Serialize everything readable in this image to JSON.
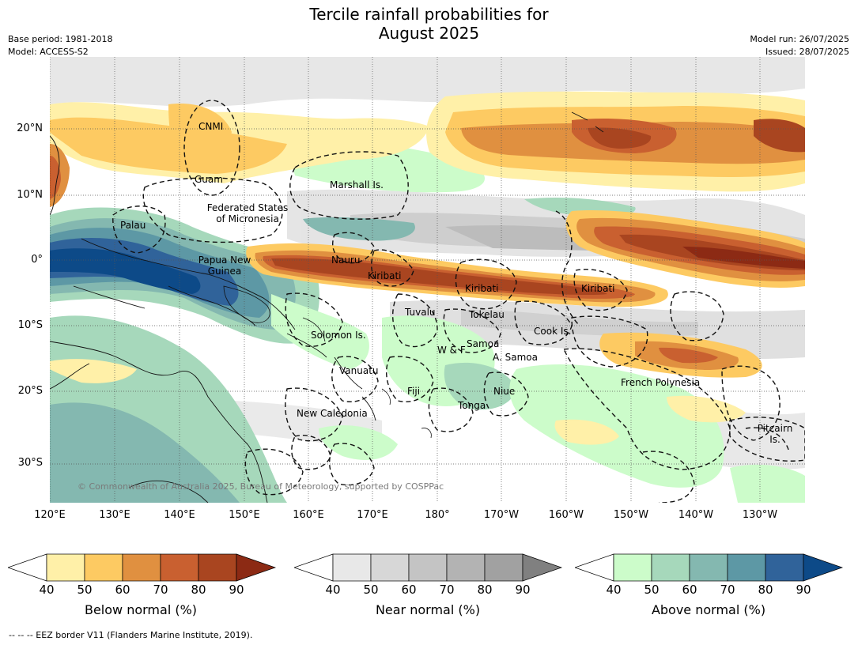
{
  "title_line1": "Tercile rainfall probabilities for",
  "title_line2": "August 2025",
  "meta": {
    "base_period": "Base period: 1981-2018",
    "model": "Model: ACCESS-S2",
    "model_run": "Model run: 26/07/2025",
    "issued": "Issued: 28/07/2025"
  },
  "lat_ticks": [
    "20°N",
    "10°N",
    "0°",
    "10°S",
    "20°S",
    "30°S"
  ],
  "lon_ticks": [
    "120°E",
    "130°E",
    "140°E",
    "150°E",
    "160°E",
    "170°E",
    "180°",
    "170°W",
    "160°W",
    "150°W",
    "140°W",
    "130°W"
  ],
  "places": {
    "cnmi": "CNMI",
    "guam": "Guam",
    "marshall": "Marshall Is.",
    "fsm1": "Federated States",
    "fsm2": "of Micronesia",
    "palau": "Palau",
    "png1": "Papua New",
    "png2": "Guinea",
    "nauru": "Nauru",
    "kiribati_w": "Kiribati",
    "kiribati_c": "Kiribati",
    "kiribati_e": "Kiribati",
    "tuvalu": "Tuvalu",
    "tokelau": "Tokelau",
    "solomon": "Solomon Is.",
    "cook": "Cook Is.",
    "wf": "W & F",
    "samoa": "Samoa",
    "asamoa": "A. Samoa",
    "vanuatu": "Vanuatu",
    "fiji": "Fiji",
    "niue": "Niue",
    "tonga": "Tonga",
    "french_polynesia": "French Polynesia",
    "newcal": "New Caledonia",
    "pitcairn1": "Pitcairn",
    "pitcairn2": "Is."
  },
  "copyright": "© Commonwealth of Australia 2025, Bureau of Meteorology, supported by COSPPac",
  "colorbars": [
    {
      "title": "Below normal (%)",
      "colors": [
        "#ffffff",
        "#fff0a8",
        "#fdca62",
        "#e09040",
        "#c96030",
        "#a94520",
        "#8c2a14"
      ],
      "ticks": [
        "40",
        "50",
        "60",
        "70",
        "80",
        "90"
      ]
    },
    {
      "title": "Near normal (%)",
      "colors": [
        "#ffffff",
        "#e8e8e8",
        "#d7d7d7",
        "#c4c4c4",
        "#b3b3b3",
        "#a1a1a1",
        "#808080"
      ],
      "ticks": [
        "40",
        "50",
        "60",
        "70",
        "80",
        "90"
      ]
    },
    {
      "title": "Above normal (%)",
      "colors": [
        "#ffffff",
        "#ccfcca",
        "#a6d8bb",
        "#84b8b0",
        "#5d98a5",
        "#30639a",
        "#0d4a88"
      ],
      "ticks": [
        "40",
        "50",
        "60",
        "70",
        "80",
        "90"
      ]
    }
  ],
  "footer": "--  --  -- EEZ border V11 (Flanders Marine Institute, 2019)."
}
